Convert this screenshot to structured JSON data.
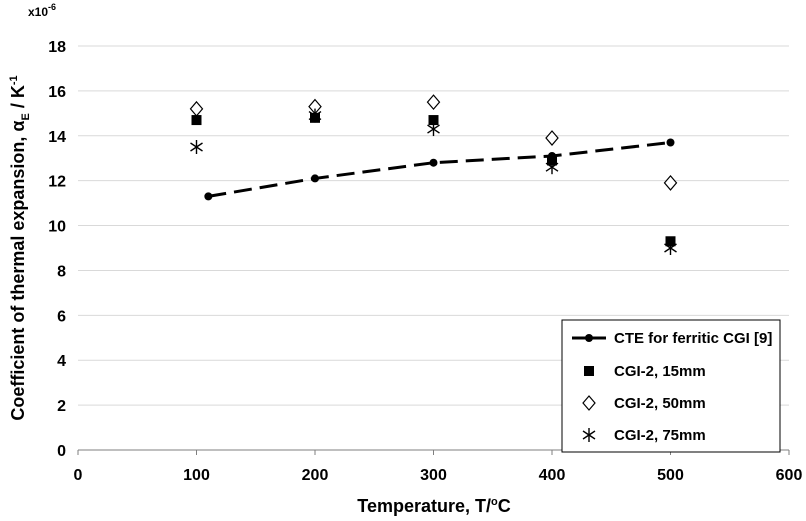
{
  "chart_data": {
    "type": "scatter",
    "title": "",
    "multiplier_label": "x10",
    "multiplier_exp": "-6",
    "xlabel": {
      "prefix": "Temperature, T/",
      "sup": "o",
      "suffix": "C"
    },
    "ylabel": {
      "prefix": "Coefficient of thermal expansion, α",
      "sub": "E",
      "middle": " / K",
      "sup": "-1"
    },
    "xlim": [
      0,
      600
    ],
    "ylim": [
      0,
      18
    ],
    "xticks": [
      0,
      100,
      200,
      300,
      400,
      500,
      600
    ],
    "yticks": [
      0,
      2,
      4,
      6,
      8,
      10,
      12,
      14,
      16,
      18
    ],
    "grid": "horizontal",
    "legend_position": "bottom-right",
    "series": [
      {
        "name": "CTE for ferritic CGI [9]",
        "marker": "circle",
        "line": "dashed",
        "x": [
          110,
          200,
          300,
          400,
          500
        ],
        "y": [
          11.3,
          12.1,
          12.8,
          13.1,
          13.7
        ]
      },
      {
        "name": "CGI-2, 15mm",
        "marker": "square",
        "line": "none",
        "x": [
          100,
          200,
          300,
          400,
          500
        ],
        "y": [
          14.7,
          14.8,
          14.7,
          12.9,
          9.3
        ]
      },
      {
        "name": "CGI-2, 50mm",
        "marker": "diamond",
        "line": "none",
        "x": [
          100,
          200,
          300,
          400,
          500
        ],
        "y": [
          15.2,
          15.3,
          15.5,
          13.9,
          11.9
        ]
      },
      {
        "name": "CGI-2, 75mm",
        "marker": "asterisk",
        "line": "none",
        "x": [
          100,
          200,
          300,
          400,
          500
        ],
        "y": [
          13.5,
          14.9,
          14.3,
          12.6,
          9.0
        ]
      }
    ]
  },
  "colors": {
    "marker": "#000000",
    "grid": "#d9d9d9",
    "axis": "#7f7f7f",
    "legend_border": "#000000"
  }
}
